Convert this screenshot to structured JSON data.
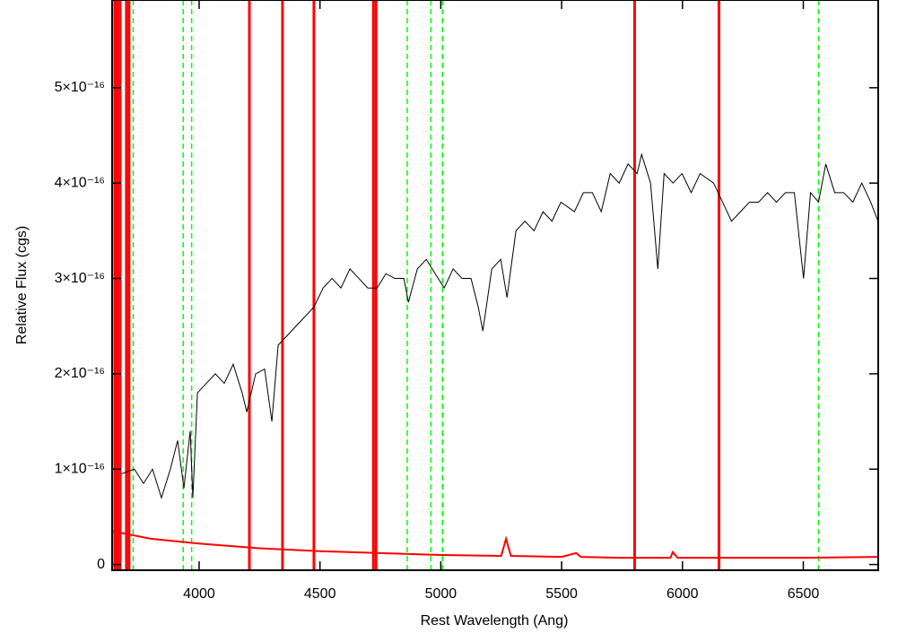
{
  "chart_data": {
    "type": "line",
    "xlabel": "Rest Wavelength (Ang)",
    "ylabel": "Relative Flux (cgs)",
    "xlim": [
      3640,
      6810
    ],
    "ylim": [
      -6e-18,
      5.92e-16
    ],
    "xticks": [
      4000,
      4500,
      5000,
      5500,
      6000,
      6500
    ],
    "yticks": [
      0,
      {
        "value": 1e-16,
        "label": "1×10⁻¹⁶"
      },
      {
        "value": 2e-16,
        "label": "2×10⁻¹⁶"
      },
      {
        "value": 3e-16,
        "label": "3×10⁻¹⁶"
      },
      {
        "value": 4e-16,
        "label": "4×10⁻¹⁶"
      },
      {
        "value": 5e-16,
        "label": "5×10⁻¹⁶"
      }
    ],
    "series": [
      {
        "color": "#000000",
        "x": [
          3677,
          3732,
          3770,
          3807,
          3844,
          3881,
          3911,
          3937,
          3963,
          3974,
          3993,
          4030,
          4067,
          4104,
          4141,
          4178,
          4197,
          4234,
          4271,
          4301,
          4327,
          4364,
          4401,
          4438,
          4475,
          4513,
          4550,
          4587,
          4624,
          4661,
          4698,
          4736,
          4773,
          4810,
          4847,
          4866,
          4903,
          4940,
          4977,
          5014,
          5051,
          5088,
          5125,
          5155,
          5174,
          5211,
          5248,
          5274,
          5311,
          5348,
          5386,
          5423,
          5460,
          5497,
          5553,
          5590,
          5627,
          5664,
          5701,
          5738,
          5775,
          5812,
          5831,
          5868,
          5898,
          5924,
          5961,
          5998,
          6036,
          6073,
          6129,
          6166,
          6203,
          6240,
          6277,
          6315,
          6352,
          6389,
          6426,
          6463,
          6501,
          6530,
          6563,
          6593,
          6630,
          6667,
          6705,
          6742,
          6779,
          6809
        ],
        "values": [
          9.5e-17,
          1e-16,
          8.5e-17,
          1e-16,
          7e-17,
          1e-16,
          1.3e-16,
          8e-17,
          1.4e-16,
          7e-17,
          1.8e-16,
          1.9e-16,
          2e-16,
          1.9e-16,
          2.1e-16,
          1.8e-16,
          1.6e-16,
          2e-16,
          2.05e-16,
          1.5e-16,
          2.3e-16,
          2.4e-16,
          2.5e-16,
          2.6e-16,
          2.7e-16,
          2.9e-16,
          3e-16,
          2.9e-16,
          3.1e-16,
          3e-16,
          2.9e-16,
          2.9e-16,
          3.05e-16,
          3e-16,
          3e-16,
          2.75e-16,
          3.1e-16,
          3.2e-16,
          3.05e-16,
          2.9e-16,
          3.1e-16,
          3e-16,
          3e-16,
          2.7e-16,
          2.45e-16,
          3.1e-16,
          3.2e-16,
          2.8e-16,
          3.5e-16,
          3.6e-16,
          3.5e-16,
          3.7e-16,
          3.6e-16,
          3.8e-16,
          3.7e-16,
          3.9e-16,
          3.9e-16,
          3.7e-16,
          4.1e-16,
          4e-16,
          4.2e-16,
          4.1e-16,
          4.3e-16,
          4e-16,
          3.1e-16,
          4.1e-16,
          4e-16,
          4.1e-16,
          3.9e-16,
          4.1e-16,
          4e-16,
          3.8e-16,
          3.6e-16,
          3.7e-16,
          3.8e-16,
          3.8e-16,
          3.9e-16,
          3.8e-16,
          3.9e-16,
          3.9e-16,
          3e-16,
          3.9e-16,
          3.8e-16,
          4.2e-16,
          3.9e-16,
          3.9e-16,
          3.8e-16,
          4e-16,
          3.8e-16,
          3.6e-16
        ]
      },
      {
        "color": "#ff0000",
        "x": [
          3640,
          3800,
          4000,
          4250,
          4500,
          4750,
          5000,
          5250,
          5270,
          5290,
          5500,
          5560,
          5580,
          5750,
          5950,
          5960,
          5980,
          6250,
          6500,
          6810
        ],
        "values": [
          3.5e-17,
          2.7e-17,
          2.2e-17,
          1.7e-17,
          1.4e-17,
          1.2e-17,
          1e-17,
          9e-18,
          2.7e-17,
          9e-18,
          8e-18,
          1.2e-17,
          8e-18,
          7e-18,
          7e-18,
          1.3e-17,
          7e-18,
          7e-18,
          7e-18,
          8e-18
        ]
      }
    ],
    "vlines": [
      {
        "color": "#ff0000",
        "dashed": false,
        "x": [
          3651,
          3662,
          3673,
          3699,
          3710,
          4208,
          4345,
          4475,
          4721,
          4732,
          5802,
          6151
        ]
      },
      {
        "color": "#00ff00",
        "dashed": true,
        "x": [
          3727,
          3934,
          3969,
          4861,
          4959,
          5007,
          6563
        ]
      }
    ]
  }
}
